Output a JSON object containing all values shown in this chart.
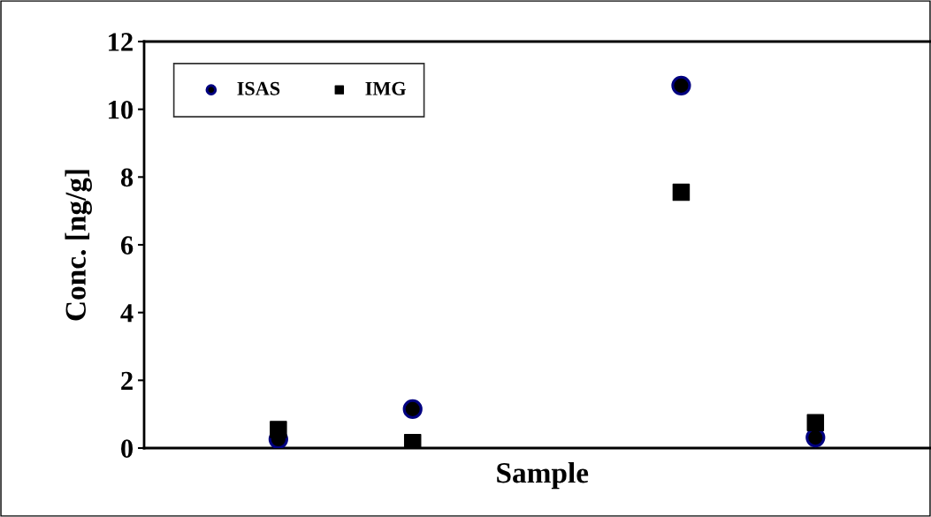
{
  "chart_data": {
    "type": "scatter",
    "xlabel": "Sample",
    "ylabel": "Conc. [ng/g]",
    "categories": [
      null,
      null,
      null,
      null,
      null
    ],
    "series": [
      {
        "name": "ISAS",
        "color": "#000080",
        "marker": "circle",
        "values": [
          0.26,
          1.15,
          null,
          10.7,
          0.31
        ]
      },
      {
        "name": "IMG",
        "color": "#000000",
        "marker": "square",
        "values": [
          0.55,
          0.16,
          null,
          7.55,
          0.75
        ]
      }
    ],
    "ylim": [
      0,
      12
    ],
    "yticks": [
      0,
      2,
      4,
      6,
      8,
      10,
      12
    ],
    "grid": false,
    "legend": "top left",
    "tick_labels": "y"
  }
}
